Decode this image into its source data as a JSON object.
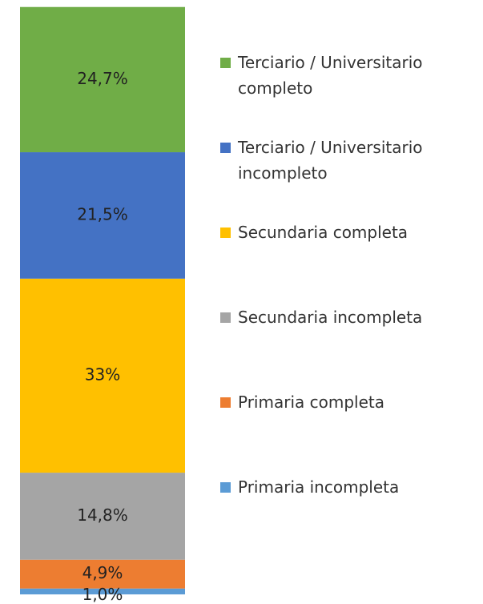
{
  "chart_data": {
    "type": "bar",
    "stacked": true,
    "categories": [
      null
    ],
    "ylim": [
      0,
      100
    ],
    "series": [
      {
        "name": "Primaria incompleta",
        "color": "#5b9bd5",
        "values": [
          1.0
        ],
        "value_labels": [
          "1,0%"
        ]
      },
      {
        "name": "Primaria completa",
        "color": "#ed7d31",
        "values": [
          4.9
        ],
        "value_labels": [
          "4,9%"
        ]
      },
      {
        "name": "Secundaria incompleta",
        "color": "#a5a5a5",
        "values": [
          14.8
        ],
        "value_labels": [
          "14,8%"
        ]
      },
      {
        "name": "Secundaria completa",
        "color": "#ffc000",
        "values": [
          33
        ],
        "value_labels": [
          "33%"
        ]
      },
      {
        "name": "Terciario / Universitario incompleto",
        "color": "#4472c4",
        "values": [
          21.5
        ],
        "value_labels": [
          "21,5%"
        ]
      },
      {
        "name": "Terciario / Universitario completo",
        "color": "#70ad47",
        "values": [
          24.7
        ],
        "value_labels": [
          "24,7%"
        ]
      }
    ],
    "legend": "right"
  }
}
